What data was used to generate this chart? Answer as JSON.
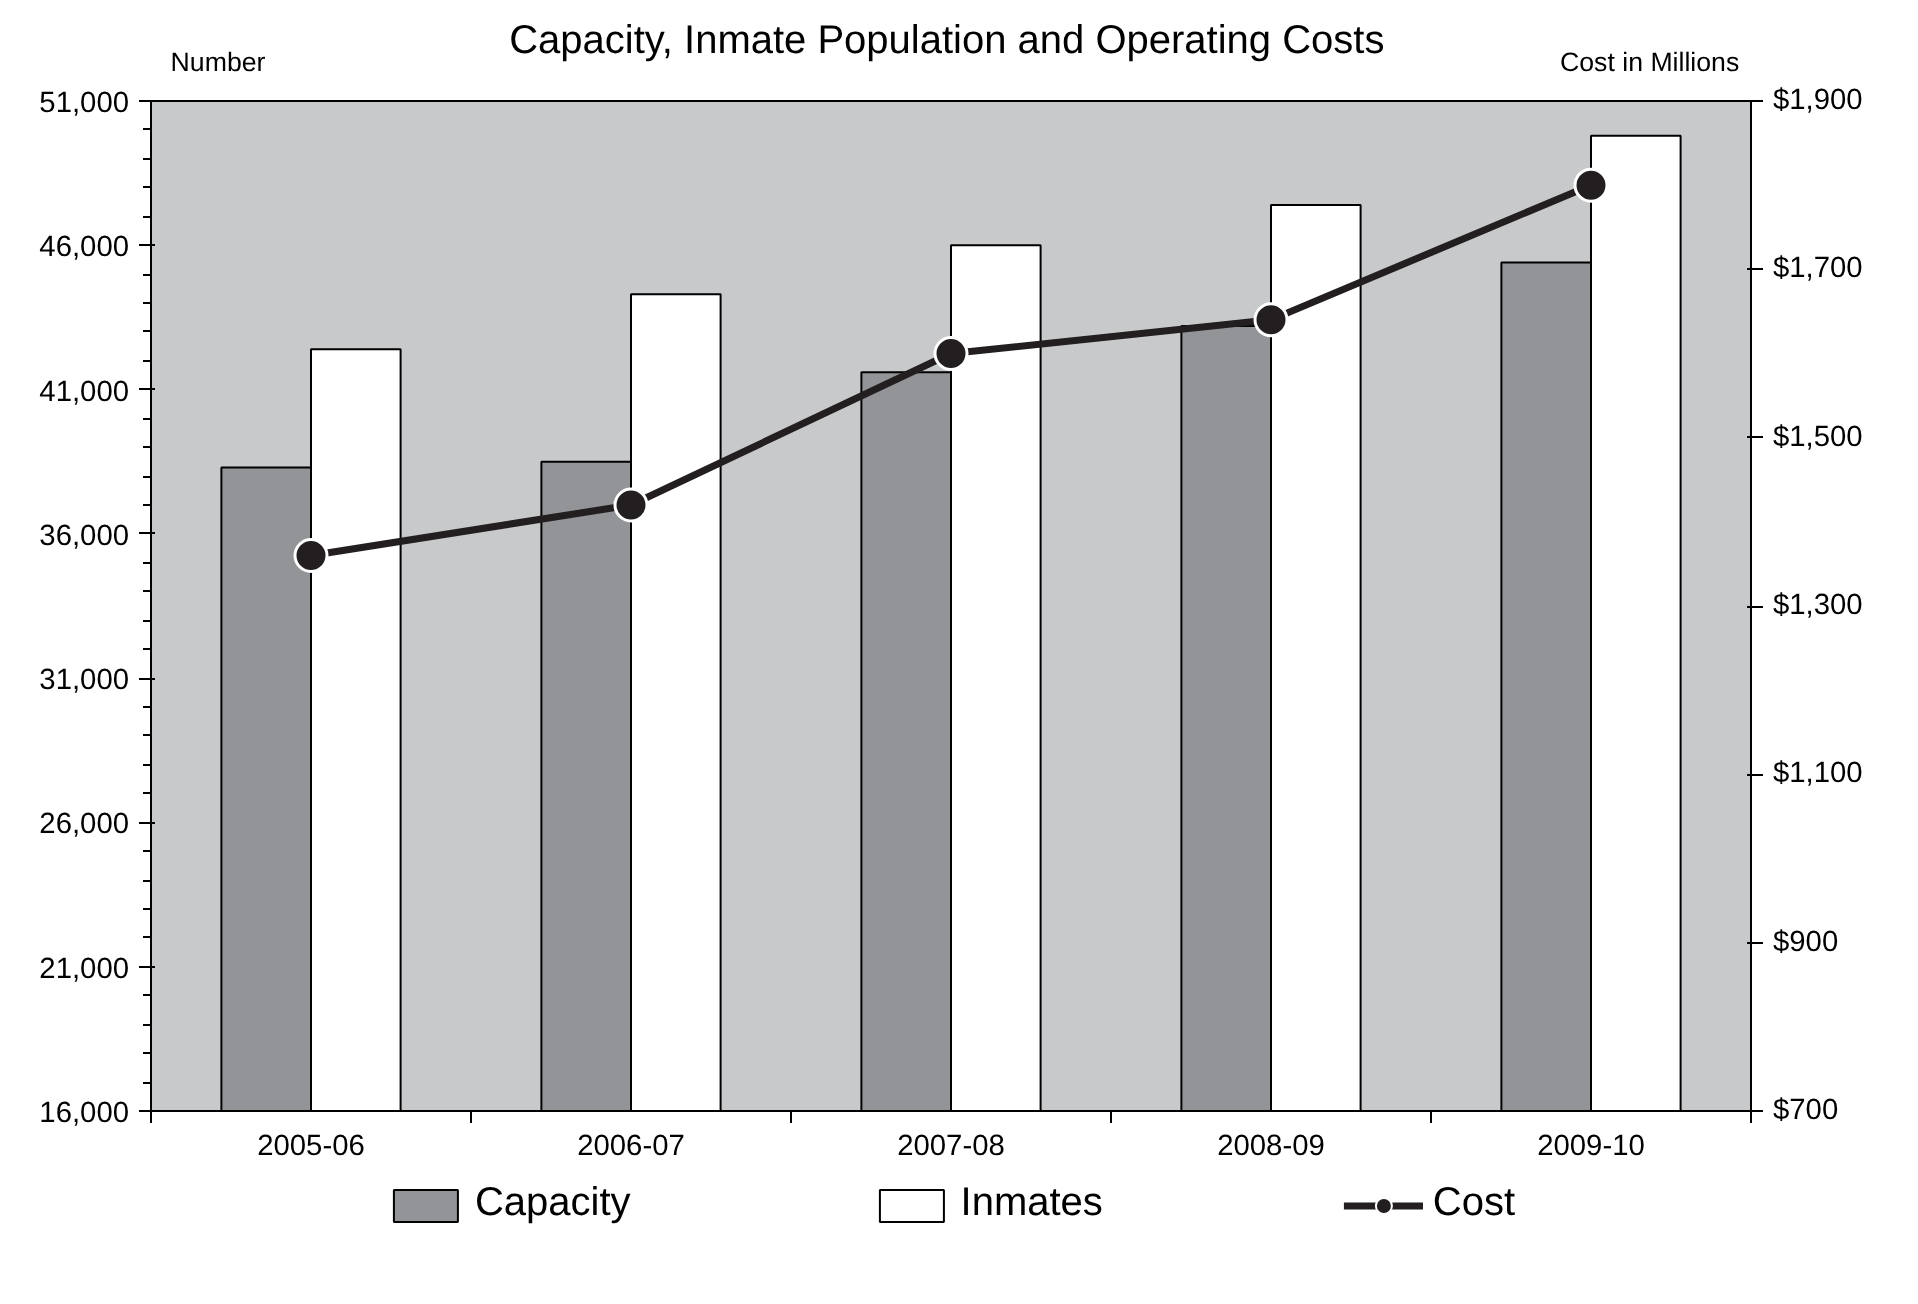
{
  "chart_data": {
    "type": "bar",
    "title": "Capacity, Inmate Population and Operating Costs",
    "ylabel": "Number",
    "y2label": "Cost in Millions",
    "categories": [
      "2005-06",
      "2006-07",
      "2007-08",
      "2008-09",
      "2009-10"
    ],
    "series": [
      {
        "name": "Capacity",
        "color": "#939498",
        "values": [
          38300,
          38500,
          41600,
          43200,
          45400
        ]
      },
      {
        "name": "Inmates",
        "color": "#ffffff",
        "values": [
          42400,
          44300,
          46000,
          47400,
          49800
        ]
      },
      {
        "name": "Cost",
        "type": "line",
        "axis": "y2",
        "color": "#231f20",
        "marker": "circle",
        "values": [
          1360,
          1420,
          1600,
          1640,
          1800
        ]
      }
    ],
    "ylim": [
      16000,
      51000
    ],
    "yticks": [
      {
        "value": 16000,
        "label": "16,000"
      },
      {
        "value": 21000,
        "label": "21,000"
      },
      {
        "value": 26000,
        "label": "26,000"
      },
      {
        "value": 31000,
        "label": "31,000"
      },
      {
        "value": 36000,
        "label": "36,000"
      },
      {
        "value": 41000,
        "label": "41,000"
      },
      {
        "value": 46000,
        "label": "46,000"
      },
      {
        "value": 51000,
        "label": "51,000"
      }
    ],
    "y2lim": [
      700,
      1900
    ],
    "y2ticks": [
      {
        "value": 700,
        "label": "$700"
      },
      {
        "value": 900,
        "label": "$900"
      },
      {
        "value": 1100,
        "label": "$1,100"
      },
      {
        "value": 1300,
        "label": "$1,300"
      },
      {
        "value": 1500,
        "label": "$1,500"
      },
      {
        "value": 1700,
        "label": "$1,700"
      },
      {
        "value": 1900,
        "label": "$1,900"
      }
    ],
    "grid": false,
    "legend": "bottom"
  }
}
